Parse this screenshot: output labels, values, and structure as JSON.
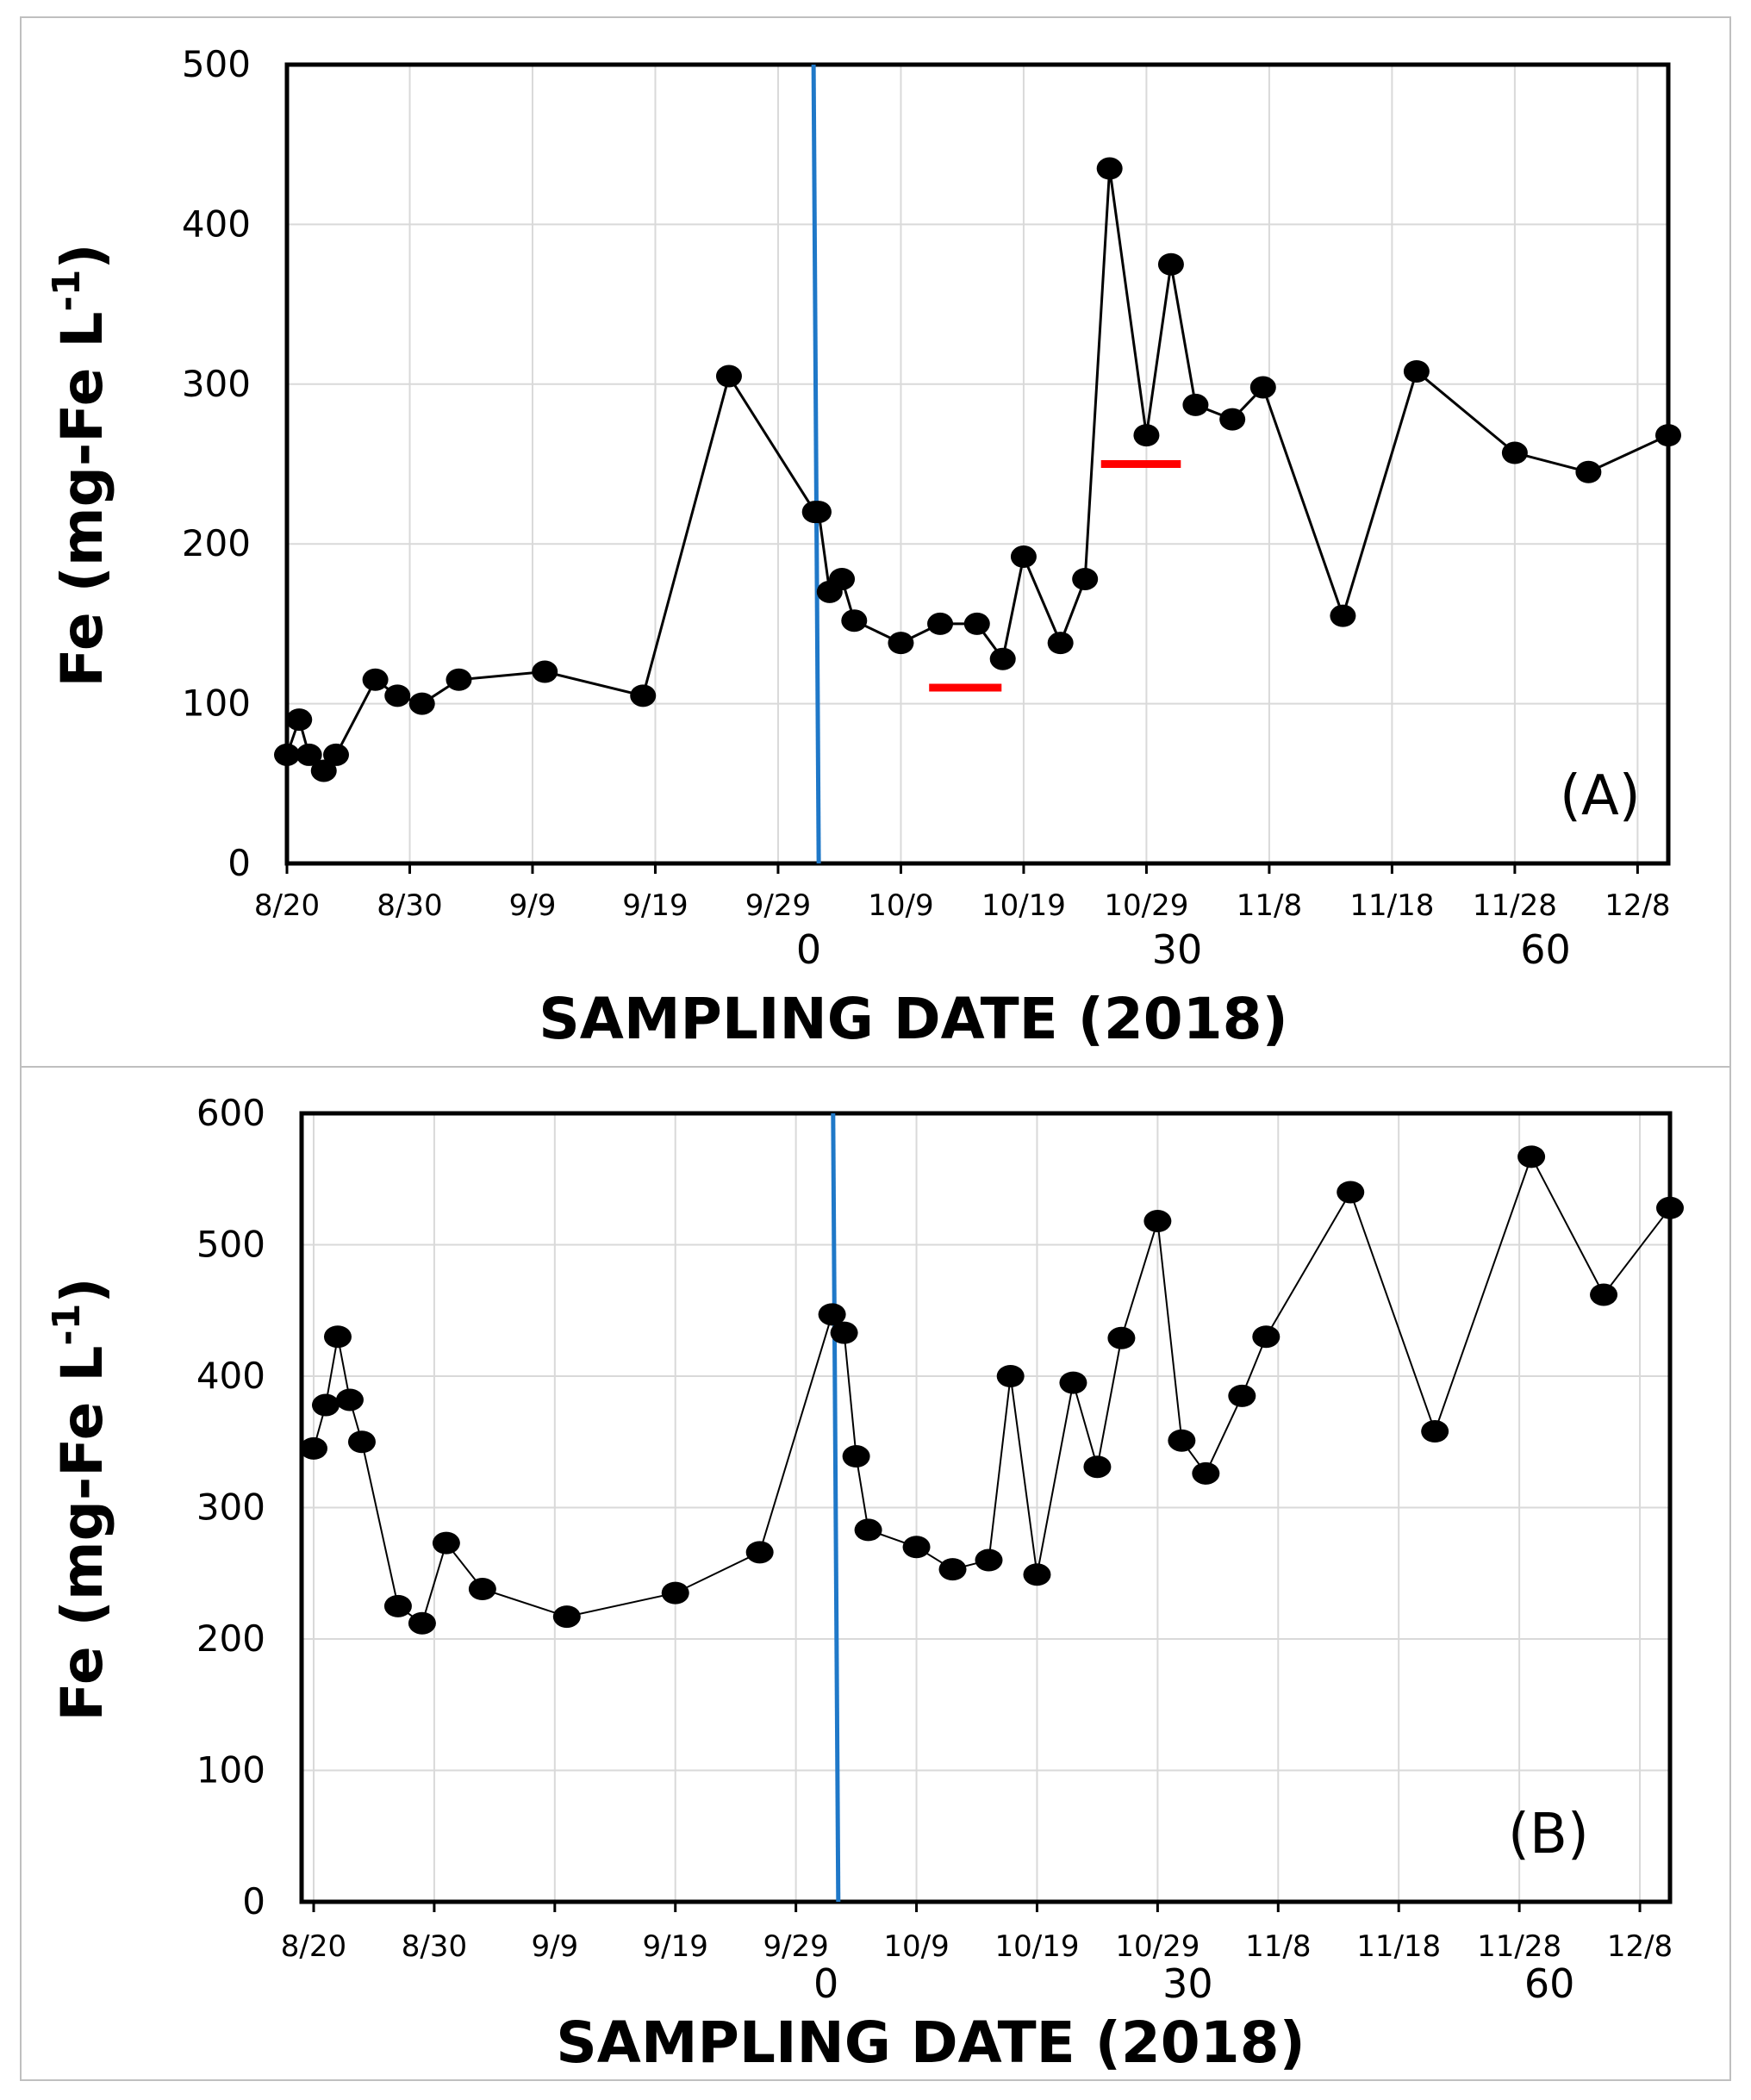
{
  "chart_data": [
    {
      "panel": "A",
      "type": "line",
      "panel_label": "(A)",
      "title": "",
      "xlabel": "SAMPLING DATE (2018)",
      "ylabel_main": "Fe (mg-Fe L",
      "ylabel_sup": "-1",
      "ylabel_close": ")",
      "ylim": [
        0,
        500
      ],
      "yticks": [
        "0",
        "100",
        "200",
        "300",
        "400",
        "500"
      ],
      "xlim_days": [
        0,
        112.5
      ],
      "date_ticks": [
        {
          "label": "8/20",
          "day": 0
        },
        {
          "label": "8/30",
          "day": 10
        },
        {
          "label": "9/9",
          "day": 20
        },
        {
          "label": "9/19",
          "day": 30
        },
        {
          "label": "9/29",
          "day": 40
        },
        {
          "label": "10/9",
          "day": 50
        },
        {
          "label": "10/19",
          "day": 60
        },
        {
          "label": "10/29",
          "day": 70
        },
        {
          "label": "11/8",
          "day": 80
        },
        {
          "label": "11/18",
          "day": 90
        },
        {
          "label": "11/28",
          "day": 100
        },
        {
          "label": "12/8",
          "day": 110
        }
      ],
      "day_ticks": [
        {
          "label": "0",
          "day": 42.5
        },
        {
          "label": "30",
          "day": 72.5
        },
        {
          "label": "60",
          "day": 102.5
        }
      ],
      "vertical_line_day": 43.1,
      "red_markers": [
        {
          "x_days": [
            52.3,
            58.2
          ],
          "y": 110
        },
        {
          "x_days": [
            66.3,
            72.8
          ],
          "y": 250
        }
      ],
      "series": [
        {
          "name": "Fe",
          "x_days": [
            0,
            1,
            1.8,
            3,
            4,
            7.2,
            9,
            11,
            14,
            21,
            29,
            36,
            43,
            43.3,
            44.2,
            45.2,
            46.2,
            50,
            53.2,
            56.2,
            58.3,
            60,
            63,
            65,
            67,
            70,
            72,
            74,
            77,
            79.5,
            86,
            92,
            100,
            106,
            112.5
          ],
          "y": [
            68,
            90,
            68,
            58,
            68,
            115,
            105,
            100,
            115,
            120,
            105,
            305,
            220,
            220,
            170,
            178,
            152,
            138,
            150,
            150,
            128,
            192,
            138,
            178,
            435,
            268,
            375,
            287,
            278,
            298,
            155,
            308,
            257,
            245,
            268
          ]
        }
      ]
    },
    {
      "panel": "B",
      "type": "line",
      "panel_label": "(B)",
      "title": "",
      "xlabel": "SAMPLING DATE (2018)",
      "ylabel_main": "Fe (mg-Fe L",
      "ylabel_sup": "-1",
      "ylabel_close": ")",
      "ylim": [
        0,
        600
      ],
      "yticks": [
        "0",
        "100",
        "200",
        "300",
        "400",
        "500",
        "600"
      ],
      "xlim_days": [
        -1,
        112.5
      ],
      "date_ticks": [
        {
          "label": "8/20",
          "day": 0
        },
        {
          "label": "8/30",
          "day": 10
        },
        {
          "label": "9/9",
          "day": 20
        },
        {
          "label": "9/19",
          "day": 30
        },
        {
          "label": "9/29",
          "day": 40
        },
        {
          "label": "10/9",
          "day": 50
        },
        {
          "label": "10/19",
          "day": 60
        },
        {
          "label": "10/29",
          "day": 70
        },
        {
          "label": "11/8",
          "day": 80
        },
        {
          "label": "11/18",
          "day": 90
        },
        {
          "label": "11/28",
          "day": 100
        },
        {
          "label": "12/8",
          "day": 110
        }
      ],
      "day_ticks": [
        {
          "label": "0",
          "day": 42.5
        },
        {
          "label": "30",
          "day": 72.5
        },
        {
          "label": "60",
          "day": 102.5
        }
      ],
      "vertical_line_day": 43.3,
      "red_markers": [],
      "series": [
        {
          "name": "Fe",
          "x_days": [
            0,
            1,
            2,
            3,
            4,
            7,
            9,
            11,
            14,
            21,
            30,
            37,
            43,
            44,
            45,
            46,
            50,
            53,
            56,
            57.8,
            60,
            63,
            65,
            67,
            70,
            72,
            74,
            77,
            79,
            86,
            93,
            101,
            107,
            112.5
          ],
          "y": [
            345,
            378,
            430,
            382,
            350,
            225,
            212,
            273,
            238,
            217,
            235,
            266,
            447,
            433,
            339,
            283,
            270,
            253,
            260,
            400,
            249,
            395,
            331,
            429,
            518,
            351,
            326,
            385,
            430,
            540,
            358,
            567,
            462,
            528
          ]
        }
      ]
    }
  ]
}
